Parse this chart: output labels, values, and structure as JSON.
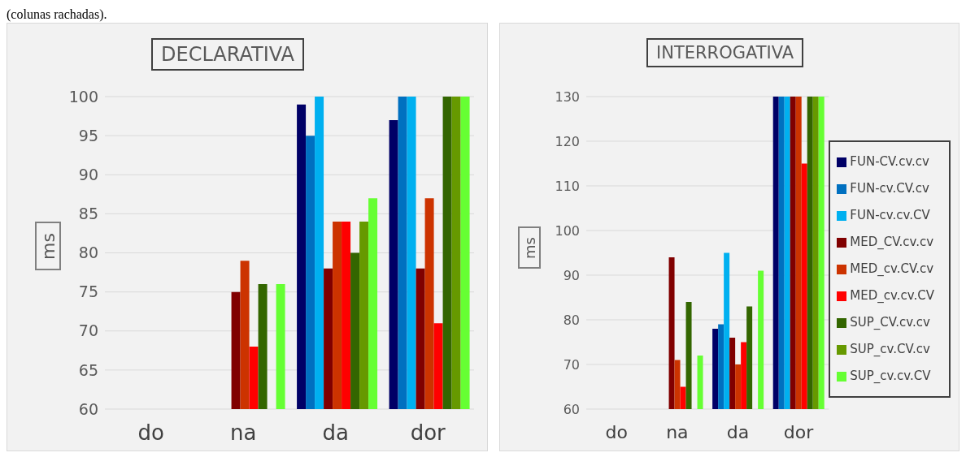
{
  "chart_data": [
    {
      "type": "bar",
      "title": "DECLARATIVA",
      "ylabel": "ms",
      "annotations": [
        "(colunas rachadas)."
      ],
      "categories": [
        "do",
        "na",
        "da",
        "dor"
      ],
      "ylim": [
        60,
        100
      ],
      "yticks": [
        60,
        65,
        70,
        75,
        80,
        85,
        90,
        95,
        100
      ],
      "grid": "y",
      "legend": false,
      "series": [
        {
          "color": "#000066",
          "values": [
            60,
            60,
            99,
            97
          ]
        },
        {
          "color": "#0070c0",
          "values": [
            60,
            60,
            95,
            100
          ]
        },
        {
          "color": "#00b0f0",
          "values": [
            60,
            60,
            100,
            100
          ]
        },
        {
          "color": "#800000",
          "values": [
            60,
            75,
            78,
            78
          ]
        },
        {
          "color": "#cc3300",
          "values": [
            60,
            79,
            84,
            87
          ]
        },
        {
          "color": "#ff0000",
          "values": [
            60,
            68,
            84,
            71
          ]
        },
        {
          "color": "#336600",
          "values": [
            60,
            76,
            80,
            100
          ]
        },
        {
          "color": "#669900",
          "values": [
            60,
            60,
            84,
            100
          ]
        },
        {
          "color": "#66ff33",
          "values": [
            60,
            76,
            87,
            100
          ]
        }
      ]
    },
    {
      "type": "bar",
      "title": "INTERROGATIVA",
      "ylabel": "ms",
      "categories": [
        "do",
        "na",
        "da",
        "dor"
      ],
      "ylim": [
        60,
        130
      ],
      "yticks": [
        60,
        70,
        80,
        90,
        100,
        110,
        120,
        130
      ],
      "grid": "y",
      "legend": "right",
      "series": [
        {
          "name": "FUN-CV.cv.cv",
          "color": "#000066",
          "values": [
            60,
            60,
            78,
            130
          ]
        },
        {
          "name": "FUN-cv.CV.cv",
          "color": "#0070c0",
          "values": [
            60,
            60,
            79,
            130
          ]
        },
        {
          "name": "FUN-cv.cv.CV",
          "color": "#00b0f0",
          "values": [
            60,
            60,
            95,
            130
          ]
        },
        {
          "name": "MED_CV.cv.cv",
          "color": "#800000",
          "values": [
            60,
            94,
            76,
            130
          ]
        },
        {
          "name": "MED_cv.CV.cv",
          "color": "#cc3300",
          "values": [
            60,
            71,
            70,
            130
          ]
        },
        {
          "name": "MED_cv.cv.CV",
          "color": "#ff0000",
          "values": [
            60,
            65,
            75,
            115
          ]
        },
        {
          "name": "SUP_CV.cv.cv",
          "color": "#336600",
          "values": [
            60,
            84,
            83,
            130
          ]
        },
        {
          "name": "SUP_cv.CV.cv",
          "color": "#669900",
          "values": [
            60,
            60,
            60,
            130
          ]
        },
        {
          "name": "SUP_cv.cv.CV",
          "color": "#66ff33",
          "values": [
            60,
            72,
            91,
            130
          ]
        }
      ]
    }
  ]
}
